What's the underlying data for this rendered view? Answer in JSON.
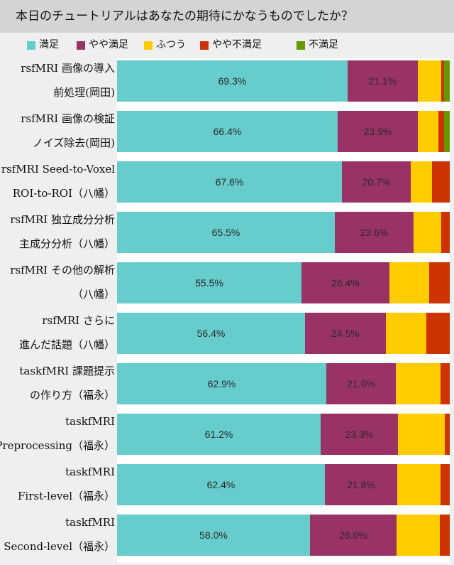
{
  "title": "本日のチュートリアルはあなたの期待にかなうものでしたか？",
  "colors": {
    "satisfied": "#66cccc",
    "somewhat_satisfied": "#993366",
    "neutral": "#ffcc00",
    "somewhat_dissatisfied": "#cc3300",
    "dissatisfied": "#669900"
  },
  "chart_data": {
    "type": "bar",
    "orientation": "horizontal",
    "stacked": true,
    "normalized": true,
    "title": "本日のチュートリアルはあなたの期待にかなうものでしたか？",
    "legend_position": "top",
    "xlim": [
      0,
      100
    ],
    "categories": [
      [
        "rsfMRI 画像の導入",
        "前処理(岡田)"
      ],
      [
        "rsfMRI 画像の検証",
        "ノイズ除去(岡田)"
      ],
      [
        "rsfMRI Seed-to-Voxel",
        "ROI-to-ROI（八幡）"
      ],
      [
        "rsfMRI 独立成分分析",
        "主成分分析（八幡）"
      ],
      [
        "rsfMRI その他の解析",
        "（八幡）"
      ],
      [
        "rsfMRI さらに",
        "進んだ話題（八幡）"
      ],
      [
        "taskfMRI 課題提示",
        "の作り方（福永）"
      ],
      [
        "taskfMRI",
        "Preprocessing（福永）"
      ],
      [
        "taskfMRI",
        "First-level（福永）"
      ],
      [
        "taskfMRI",
        "Second-level（福永）"
      ]
    ],
    "series": [
      {
        "name": "満足",
        "color_key": "satisfied",
        "values": [
          69.3,
          66.4,
          67.6,
          65.5,
          55.5,
          56.4,
          62.9,
          61.2,
          62.4,
          58.0
        ],
        "labels": [
          "69.3%",
          "66.4%",
          "67.6%",
          "65.5%",
          "55.5%",
          "56.4%",
          "62.9%",
          "61.2%",
          "62.4%",
          "58.0%"
        ]
      },
      {
        "name": "やや満足",
        "color_key": "somewhat_satisfied",
        "values": [
          21.1,
          23.9,
          20.7,
          23.6,
          26.4,
          24.5,
          21.0,
          23.3,
          21.8,
          26.0
        ],
        "labels": [
          "21.1%",
          "23.9%",
          "20.7%",
          "23.6%",
          "26.4%",
          "24.5%",
          "21.0%",
          "23.3%",
          "21.8%",
          "26.0%"
        ]
      },
      {
        "name": "ふつう",
        "color_key": "neutral",
        "values": [
          7.0,
          6.2,
          6.3,
          8.3,
          12.0,
          12.0,
          13.3,
          14.0,
          13.0,
          13.0
        ]
      },
      {
        "name": "やや不満足",
        "color_key": "somewhat_dissatisfied",
        "values": [
          0.8,
          1.8,
          5.4,
          2.6,
          6.1,
          7.1,
          2.8,
          1.5,
          2.8,
          3.0
        ]
      },
      {
        "name": "不満足",
        "color_key": "dissatisfied",
        "values": [
          1.8,
          1.7,
          0.0,
          0.0,
          0.0,
          0.0,
          0.0,
          0.0,
          0.0,
          0.0
        ]
      }
    ]
  }
}
